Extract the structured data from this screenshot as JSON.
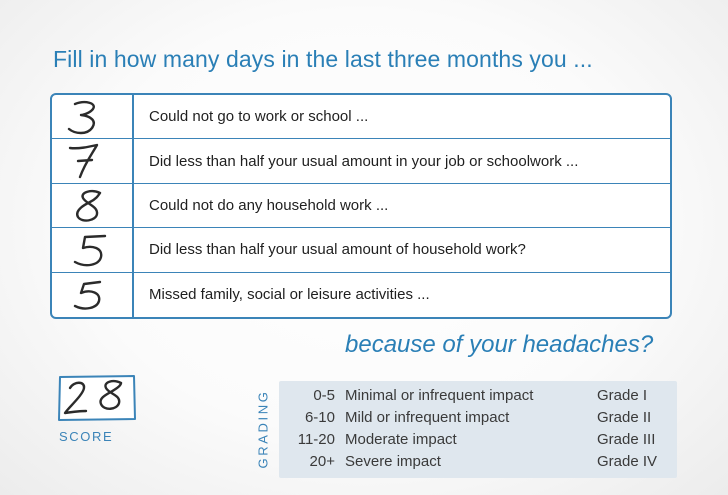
{
  "title": "Fill in how many days in the last three months you ...",
  "questions": [
    {
      "days": "3",
      "text": "Could not go to work or school ..."
    },
    {
      "days": "7",
      "text": "Did less than half your usual amount in your job or schoolwork ..."
    },
    {
      "days": "8",
      "text": "Could not do any household work ..."
    },
    {
      "days": "5",
      "text": "Did less than half your usual amount of household work?"
    },
    {
      "days": "5",
      "text": "Missed family, social or leisure activities ..."
    }
  ],
  "because": "because of your headaches?",
  "score": {
    "value": "28",
    "label": "SCORE"
  },
  "grading": {
    "label": "GRADING",
    "rows": [
      {
        "range": "0-5",
        "description": "Minimal or infrequent impact",
        "grade": "Grade I"
      },
      {
        "range": "6-10",
        "description": "Mild or infrequent impact",
        "grade": "Grade II"
      },
      {
        "range": "11-20",
        "description": "Moderate impact",
        "grade": "Grade III"
      },
      {
        "range": "20+",
        "description": "Severe impact",
        "grade": "Grade IV"
      }
    ]
  },
  "colors": {
    "accent": "#2a7fb6",
    "border": "#3b84b8",
    "grading_bg": "#dfe7ee",
    "ink": "#2b2b2b"
  }
}
